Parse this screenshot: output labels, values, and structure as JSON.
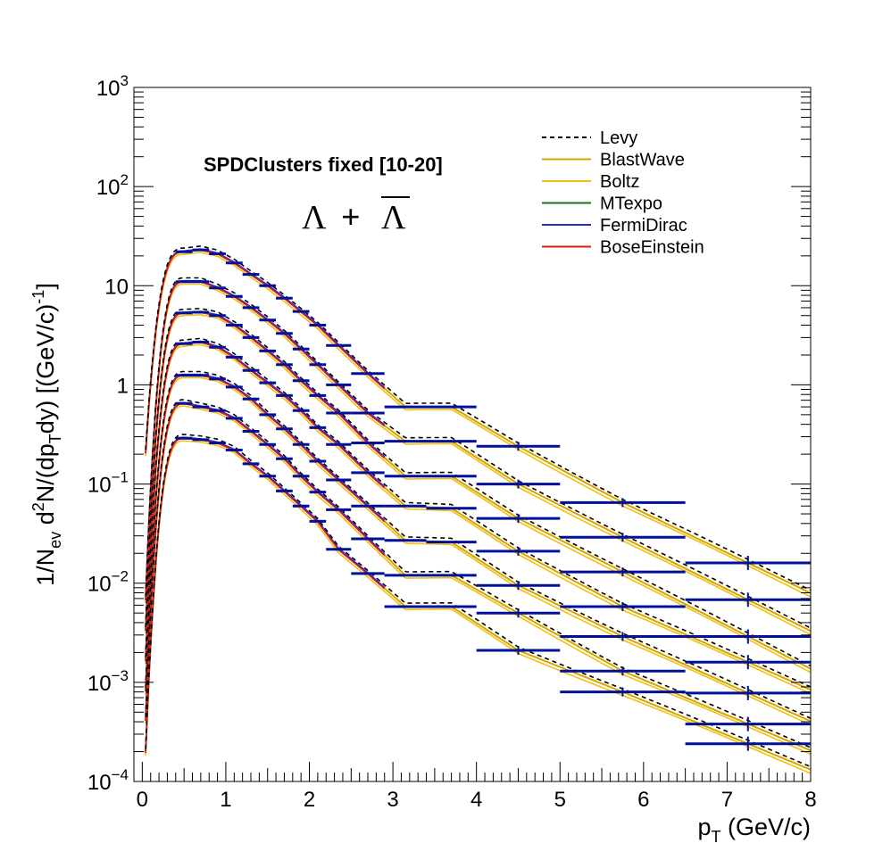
{
  "chart_data": {
    "type": "scatter",
    "title": "",
    "annotation": "SPDClusters fixed [10-20]",
    "particle_label": {
      "main": "Λ",
      "plus": "+",
      "bar": "Λ"
    },
    "xlabel": "p_T (GeV/c)",
    "ylabel": "1/N_ev d²N/(dp_T dy) [(GeV/c)⁻¹]",
    "xlim": [
      -0.1,
      8.0
    ],
    "ylim": [
      0.0001,
      1000
    ],
    "yscale": "log",
    "x_ticks": [
      "0",
      "1",
      "2",
      "3",
      "4",
      "5",
      "6",
      "7",
      "8"
    ],
    "y_ticks": [
      {
        "base": "10",
        "exp": "3"
      },
      {
        "base": "10",
        "exp": "2"
      },
      {
        "base": "10",
        "exp": ""
      },
      {
        "base": "1",
        "exp": ""
      },
      {
        "base": "10",
        "exp": "−1"
      },
      {
        "base": "10",
        "exp": "−2"
      },
      {
        "base": "10",
        "exp": "−3"
      },
      {
        "base": "10",
        "exp": "−4"
      }
    ],
    "legend_position": "top-right",
    "legend": [
      {
        "name": "Levy",
        "color": "#000000",
        "dash": true
      },
      {
        "name": "BlastWave",
        "color": "#d4a500",
        "dash": false
      },
      {
        "name": "Boltz",
        "color": "#f2c010",
        "dash": false
      },
      {
        "name": "MTexpo",
        "color": "#1a6e1a",
        "dash": false
      },
      {
        "name": "FermiDirac",
        "color": "#1f2fd0",
        "dash": false
      },
      {
        "name": "BoseEinstein",
        "color": "#e01818",
        "dash": false
      }
    ],
    "data_color": "#00109a",
    "fit_colors": {
      "levy": "#000000",
      "blastwave": "#d4a500",
      "boltz": "#f2c010",
      "mtexpo": "#1a6e1a",
      "fermidirac": "#1f2fd0",
      "boseeinstein": "#e01818"
    },
    "bins": [
      [
        0.4,
        0.6
      ],
      [
        0.6,
        0.8
      ],
      [
        0.8,
        1.0
      ],
      [
        1.0,
        1.2
      ],
      [
        1.2,
        1.4
      ],
      [
        1.4,
        1.6
      ],
      [
        1.6,
        1.8
      ],
      [
        1.8,
        2.0
      ],
      [
        2.0,
        2.2
      ],
      [
        2.2,
        2.5
      ],
      [
        2.5,
        2.9
      ],
      [
        2.9,
        3.4
      ],
      [
        3.4,
        4.0
      ],
      [
        4.0,
        5.0
      ],
      [
        5.0,
        6.5
      ],
      [
        6.5,
        8.0
      ]
    ],
    "series": [
      {
        "values": [
          22,
          23,
          21,
          17,
          13,
          10,
          7.5,
          5.5,
          4.0,
          2.5,
          1.3,
          0.6,
          0.6,
          0.24,
          0.065,
          0.016
        ]
      },
      {
        "values": [
          11,
          11,
          9.5,
          7.8,
          6.0,
          4.5,
          3.3,
          2.3,
          1.6,
          1.0,
          0.52,
          0.27,
          0.27,
          0.1,
          0.029,
          0.0068
        ]
      },
      {
        "values": [
          5.3,
          5.4,
          5.0,
          4.0,
          3.0,
          2.2,
          1.6,
          1.1,
          0.78,
          0.52,
          0.26,
          0.12,
          0.12,
          0.045,
          0.013,
          0.0029
        ]
      },
      {
        "values": [
          2.6,
          2.7,
          2.4,
          1.9,
          1.4,
          1.05,
          0.78,
          0.55,
          0.37,
          0.25,
          0.13,
          0.06,
          0.057,
          0.021,
          0.0058,
          0.0016
        ]
      },
      {
        "values": [
          1.25,
          1.25,
          1.15,
          0.95,
          0.72,
          0.5,
          0.36,
          0.25,
          0.17,
          0.11,
          0.06,
          0.027,
          0.026,
          0.0095,
          0.0029,
          0.00078
        ]
      },
      {
        "values": [
          0.65,
          0.6,
          0.55,
          0.46,
          0.34,
          0.25,
          0.18,
          0.12,
          0.083,
          0.055,
          0.028,
          0.012,
          0.012,
          0.005,
          0.0013,
          0.00038
        ]
      },
      {
        "values": [
          0.29,
          0.28,
          0.26,
          0.22,
          0.16,
          0.12,
          0.085,
          0.06,
          0.042,
          0.022,
          0.0125,
          0.0058,
          0.0058,
          0.0021,
          0.0008,
          0.00024
        ]
      }
    ]
  }
}
